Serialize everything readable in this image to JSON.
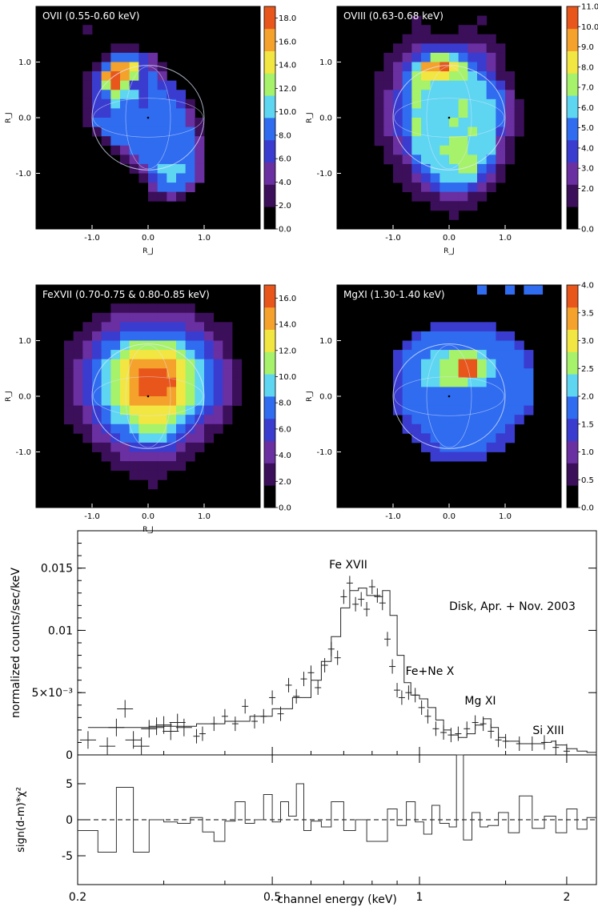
{
  "chart_data": [
    {
      "type": "heatmap",
      "title": "OVII (0.55-0.60 keV)",
      "xlabel": "R_J",
      "ylabel": "R_J",
      "xlim": [
        -2.0,
        2.0
      ],
      "ylim": [
        -2.0,
        2.0
      ],
      "x_ticks": [
        "-1.0",
        "0.0",
        "1.0"
      ],
      "y_ticks": [
        "1.0",
        "0.0",
        "-1.0"
      ],
      "colorbar_ticks": [
        "0.0",
        "2.0",
        "4.0",
        "6.0",
        "8.0",
        "10.0",
        "12.0",
        "14.0",
        "16.0",
        "18.0"
      ],
      "colorbar_range": [
        0,
        19
      ],
      "grid": [
        "000000000000000000000000",
        "000000000000000000000000",
        "000001000000000000000000",
        "000000000000000000000000",
        "000000001110000000000000",
        "000000014443200000000000",
        "000000148873210000000000",
        "000001389863420000000000",
        "000001369633433000000000",
        "000001346553443300000000",
        "000001335443444310000000",
        "000001334444444420000000",
        "000001444444444421000000",
        "000000144444444441000000",
        "000000014444444442000000",
        "000000001244444442000000",
        "000000000124444442000000",
        "000000000012455542000000",
        "000000000001345442000000",
        "000000000000244420000000",
        "000000000000112100000000",
        "000000000000000000000000",
        "000000000000000000000000",
        "000000000000000000000000"
      ]
    },
    {
      "type": "heatmap",
      "title": "OVIII (0.63-0.68 keV)",
      "xlabel": "R_J",
      "ylabel": "R_J",
      "xlim": [
        -2.0,
        2.0
      ],
      "ylim": [
        -2.0,
        2.0
      ],
      "x_ticks": [
        "-1.0",
        "0.0",
        "1.0"
      ],
      "y_ticks": [
        "1.0",
        "0.0",
        "-1.0"
      ],
      "colorbar_ticks": [
        "0.0",
        "2.0",
        "3.0",
        "4.0",
        "5.0",
        "6.0",
        "7.0",
        "8.0",
        "9.0",
        "10.0",
        "11.0"
      ],
      "colorbar_range": [
        0,
        11
      ],
      "grid": [
        "000000000000000000000000",
        "000000001000000100000000",
        "000000001100011000000000",
        "000000011111111110000000",
        "000000112333332211000000",
        "000001123466543321000000",
        "000001235889764321000000",
        "000011246777665431100000",
        "000011246655555543100000",
        "000012346555555544200000",
        "000012346555565554210000",
        "000012345555565554210000",
        "000012346555655554210000",
        "000012346555556553210000",
        "000011235555665552100000",
        "000001235556665552100000",
        "000001124555666542100000",
        "000000113455566431000000",
        "000000112345555321000000",
        "000000011234443210000000",
        "000000001112221100000000",
        "000000000011111000000000",
        "000000000000100000000000",
        "000000000000000000000000"
      ]
    },
    {
      "type": "heatmap",
      "title": "FeXVII (0.70-0.75 & 0.80-0.85 keV)",
      "xlabel": "R_J",
      "ylabel": "R_J",
      "xlim": [
        -2.0,
        2.0
      ],
      "ylim": [
        -2.0,
        2.0
      ],
      "x_ticks": [
        "-1.0",
        "0.0",
        "1.0"
      ],
      "y_ticks": [
        "1.0",
        "0.0",
        "-1.0"
      ],
      "colorbar_ticks": [
        "0.0",
        "2.0",
        "4.0",
        "6.0",
        "8.0",
        "10.0",
        "12.0",
        "14.0",
        "16.0"
      ],
      "colorbar_range": [
        0,
        17
      ],
      "grid": [
        "000000000000000000000000",
        "000000000000000000000000",
        "000000001111111110000000",
        "000000112222222221100000",
        "000001122333333322111000",
        "000011233444444433211000",
        "000112344566666544321000",
        "000112345677777654321000",
        "000123456788888765432100",
        "000123456789998765432100",
        "000123456789999765432100",
        "000123456789998765432100",
        "000123456788888765432100",
        "000112345677777654321000",
        "000112345567776543221000",
        "000011234456665432110000",
        "000001223445554322100000",
        "000000112233333211000000",
        "000000011222222110000000",
        "000000001111111100000000",
        "000000000011110000000000",
        "000000000000100000000000",
        "000000000000000000000000",
        "000000000000000000000000"
      ]
    },
    {
      "type": "heatmap",
      "title": "MgXI (1.30-1.40 keV)",
      "xlabel": "",
      "ylabel": "R_J",
      "xlim": [
        -2.0,
        2.0
      ],
      "ylim": [
        -2.0,
        2.0
      ],
      "x_ticks": [
        "-1.0",
        "0.0",
        "1.0"
      ],
      "y_ticks": [
        "1.0",
        "0.0",
        "-1.0"
      ],
      "colorbar_ticks": [
        "0.0",
        "0.5",
        "1.0",
        "1.5",
        "2.0",
        "2.5",
        "3.0",
        "3.5",
        "4.0"
      ],
      "colorbar_range": [
        0,
        4
      ],
      "grid": [
        "000000000000000400404400",
        "000000000000000000000000",
        "000000000000000000000000",
        "000000000000000000000000",
        "000000000033333330000000",
        "000000003444444443300000",
        "000000034444444444430000",
        "000000344455666544443000",
        "000000344556699654443000",
        "000000344556699654444000",
        "000000344556665544444000",
        "000000344444444444444000",
        "000000344444444444444000",
        "000000344444444444443000",
        "000000034444444444430000",
        "000000033444444444300000",
        "000000003344444443300000",
        "000000000334444433000000",
        "000000000033333300000000",
        "000000000000000000000000",
        "000000000000000000000000",
        "000000000000000000000000",
        "000000000000000000000000",
        "000000000000000000000000"
      ]
    },
    {
      "type": "line",
      "xlabel": "channel energy (keV)",
      "ylabel": "normalized counts/sec/keV",
      "residual_ylabel": "sign(d-m)*χ²",
      "x_scale": "log",
      "xlim": [
        0.2,
        2.3
      ],
      "ylim": [
        0,
        0.018
      ],
      "residual_ylim": [
        -9,
        9
      ],
      "x_ticks": [
        "0.2",
        "0.5",
        "1",
        "2"
      ],
      "y_ticks": [
        "0",
        "5×10⁻³",
        "0.01",
        "0.015"
      ],
      "residual_ticks": [
        "5",
        "0",
        "-5"
      ],
      "legend_text": "Disk, Apr. + Nov. 2003",
      "annotations": [
        "Fe XVII",
        "Fe+Ne X",
        "Mg XI",
        "Si XIII"
      ],
      "model_x": [
        0.21,
        0.25,
        0.3,
        0.35,
        0.4,
        0.45,
        0.5,
        0.55,
        0.6,
        0.63,
        0.66,
        0.69,
        0.72,
        0.75,
        0.78,
        0.81,
        0.84,
        0.87,
        0.9,
        0.93,
        0.96,
        1.0,
        1.04,
        1.08,
        1.12,
        1.16,
        1.2,
        1.25,
        1.3,
        1.35,
        1.4,
        1.45,
        1.5,
        1.6,
        1.7,
        1.8,
        1.86,
        1.9,
        2.0,
        2.1,
        2.2,
        2.3
      ],
      "model_y": [
        0.0022,
        0.0022,
        0.0023,
        0.0025,
        0.0027,
        0.0031,
        0.0037,
        0.0046,
        0.006,
        0.0075,
        0.0095,
        0.0118,
        0.0132,
        0.0134,
        0.0128,
        0.0127,
        0.0132,
        0.0112,
        0.008,
        0.0058,
        0.0048,
        0.0045,
        0.0038,
        0.0028,
        0.002,
        0.0016,
        0.0014,
        0.0017,
        0.0024,
        0.0029,
        0.0022,
        0.0014,
        0.0011,
        0.0009,
        0.0009,
        0.001,
        0.0011,
        0.0008,
        0.0005,
        0.0003,
        0.0002,
        0.0001
      ],
      "data_x": [
        0.21,
        0.23,
        0.24,
        0.25,
        0.26,
        0.27,
        0.28,
        0.29,
        0.3,
        0.31,
        0.32,
        0.33,
        0.35,
        0.36,
        0.38,
        0.4,
        0.42,
        0.44,
        0.46,
        0.48,
        0.5,
        0.52,
        0.54,
        0.56,
        0.58,
        0.6,
        0.62,
        0.64,
        0.66,
        0.68,
        0.7,
        0.72,
        0.74,
        0.76,
        0.78,
        0.8,
        0.82,
        0.84,
        0.86,
        0.88,
        0.9,
        0.92,
        0.95,
        0.98,
        1.01,
        1.04,
        1.08,
        1.12,
        1.16,
        1.2,
        1.25,
        1.3,
        1.35,
        1.4,
        1.45,
        1.5,
        1.6,
        1.7,
        1.8,
        1.9,
        2.0
      ],
      "data_y": [
        0.0012,
        0.0007,
        0.0022,
        0.0037,
        0.0012,
        0.0007,
        0.0021,
        0.0023,
        0.0024,
        0.0019,
        0.0026,
        0.0022,
        0.0015,
        0.0017,
        0.0025,
        0.0031,
        0.0025,
        0.0039,
        0.0027,
        0.0031,
        0.0046,
        0.0033,
        0.0056,
        0.0047,
        0.0061,
        0.0066,
        0.0054,
        0.0072,
        0.0085,
        0.0078,
        0.0127,
        0.0138,
        0.0121,
        0.0125,
        0.0117,
        0.0135,
        0.0128,
        0.0122,
        0.0093,
        0.0071,
        0.0052,
        0.0046,
        0.005,
        0.0048,
        0.0038,
        0.0031,
        0.0021,
        0.0018,
        0.0016,
        0.0017,
        0.0021,
        0.0026,
        0.0025,
        0.0019,
        0.0012,
        0.0011,
        0.0009,
        0.0009,
        0.001,
        0.0006,
        0.0003
      ],
      "residual_x": [
        0.2,
        0.22,
        0.24,
        0.26,
        0.28,
        0.3,
        0.32,
        0.34,
        0.36,
        0.38,
        0.4,
        0.42,
        0.44,
        0.46,
        0.48,
        0.5,
        0.52,
        0.54,
        0.56,
        0.58,
        0.6,
        0.63,
        0.66,
        0.7,
        0.74,
        0.78,
        0.82,
        0.86,
        0.9,
        0.94,
        0.98,
        1.02,
        1.06,
        1.1,
        1.15,
        1.19,
        1.23,
        1.28,
        1.33,
        1.38,
        1.45,
        1.52,
        1.6,
        1.7,
        1.8,
        1.9,
        2.0,
        2.1,
        2.2
      ],
      "residual_y": [
        -1.5,
        -4.5,
        4.5,
        -4.5,
        0,
        -0.3,
        -0.5,
        0.3,
        -1.7,
        -3,
        -0.2,
        2.5,
        -0.5,
        0,
        3.5,
        -0.3,
        2.5,
        0.5,
        5,
        -1.5,
        -0.2,
        -1,
        2.5,
        -1.5,
        0,
        -3,
        -3,
        1.5,
        -0.8,
        2.5,
        -0.3,
        -2,
        2,
        -0.5,
        -1,
        9,
        -2.8,
        1,
        -1,
        -0.8,
        1,
        -1.8,
        3.3,
        -1.2,
        0.5,
        -1.8,
        1.5,
        -1.3,
        0.3
      ]
    }
  ]
}
